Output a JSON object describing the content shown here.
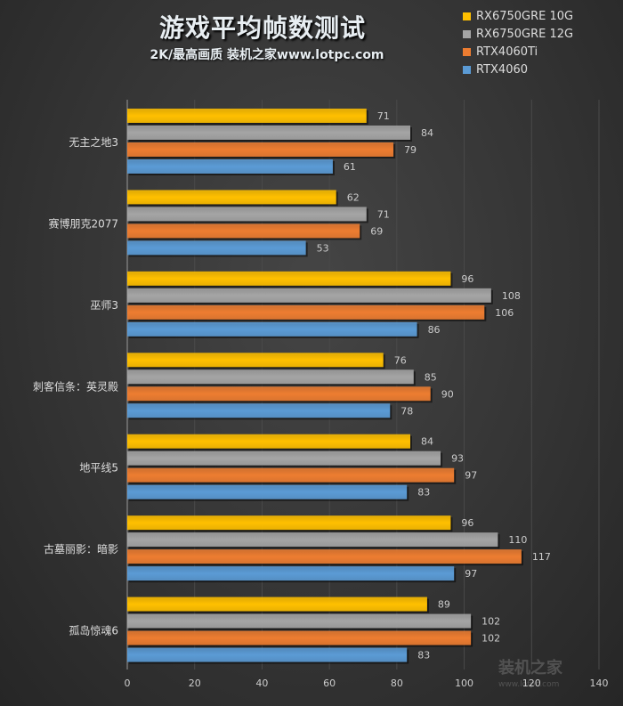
{
  "chart_data": {
    "type": "bar",
    "orientation": "horizontal",
    "title": "游戏平均帧数测试",
    "subtitle": "2K/最高画质 装机之家www.lotpc.com",
    "categories": [
      "无主之地3",
      "赛博朋克2077",
      "巫师3",
      "刺客信条：英灵殿",
      "地平线5",
      "古墓丽影：暗影",
      "孤岛惊魂6"
    ],
    "series": [
      {
        "name": "RX6750GRE 10G",
        "color": "#ffc000",
        "values": [
          71,
          62,
          96,
          76,
          84,
          96,
          89
        ]
      },
      {
        "name": "RX6750GRE 12G",
        "color": "#a5a5a5",
        "values": [
          84,
          71,
          108,
          85,
          93,
          110,
          102
        ]
      },
      {
        "name": "RTX4060Ti",
        "color": "#ed7d31",
        "values": [
          79,
          69,
          106,
          90,
          97,
          117,
          102
        ]
      },
      {
        "name": "RTX4060",
        "color": "#5b9bd5",
        "values": [
          61,
          53,
          86,
          78,
          83,
          97,
          83
        ]
      }
    ],
    "xlim": [
      0,
      140
    ],
    "xticks": [
      "0",
      "20",
      "40",
      "60",
      "80",
      "100",
      "120",
      "140"
    ],
    "grid": true,
    "data_labels": true,
    "legend": "top-right"
  },
  "watermark": {
    "text": "装机之家",
    "url": "www.lotpc.com"
  }
}
